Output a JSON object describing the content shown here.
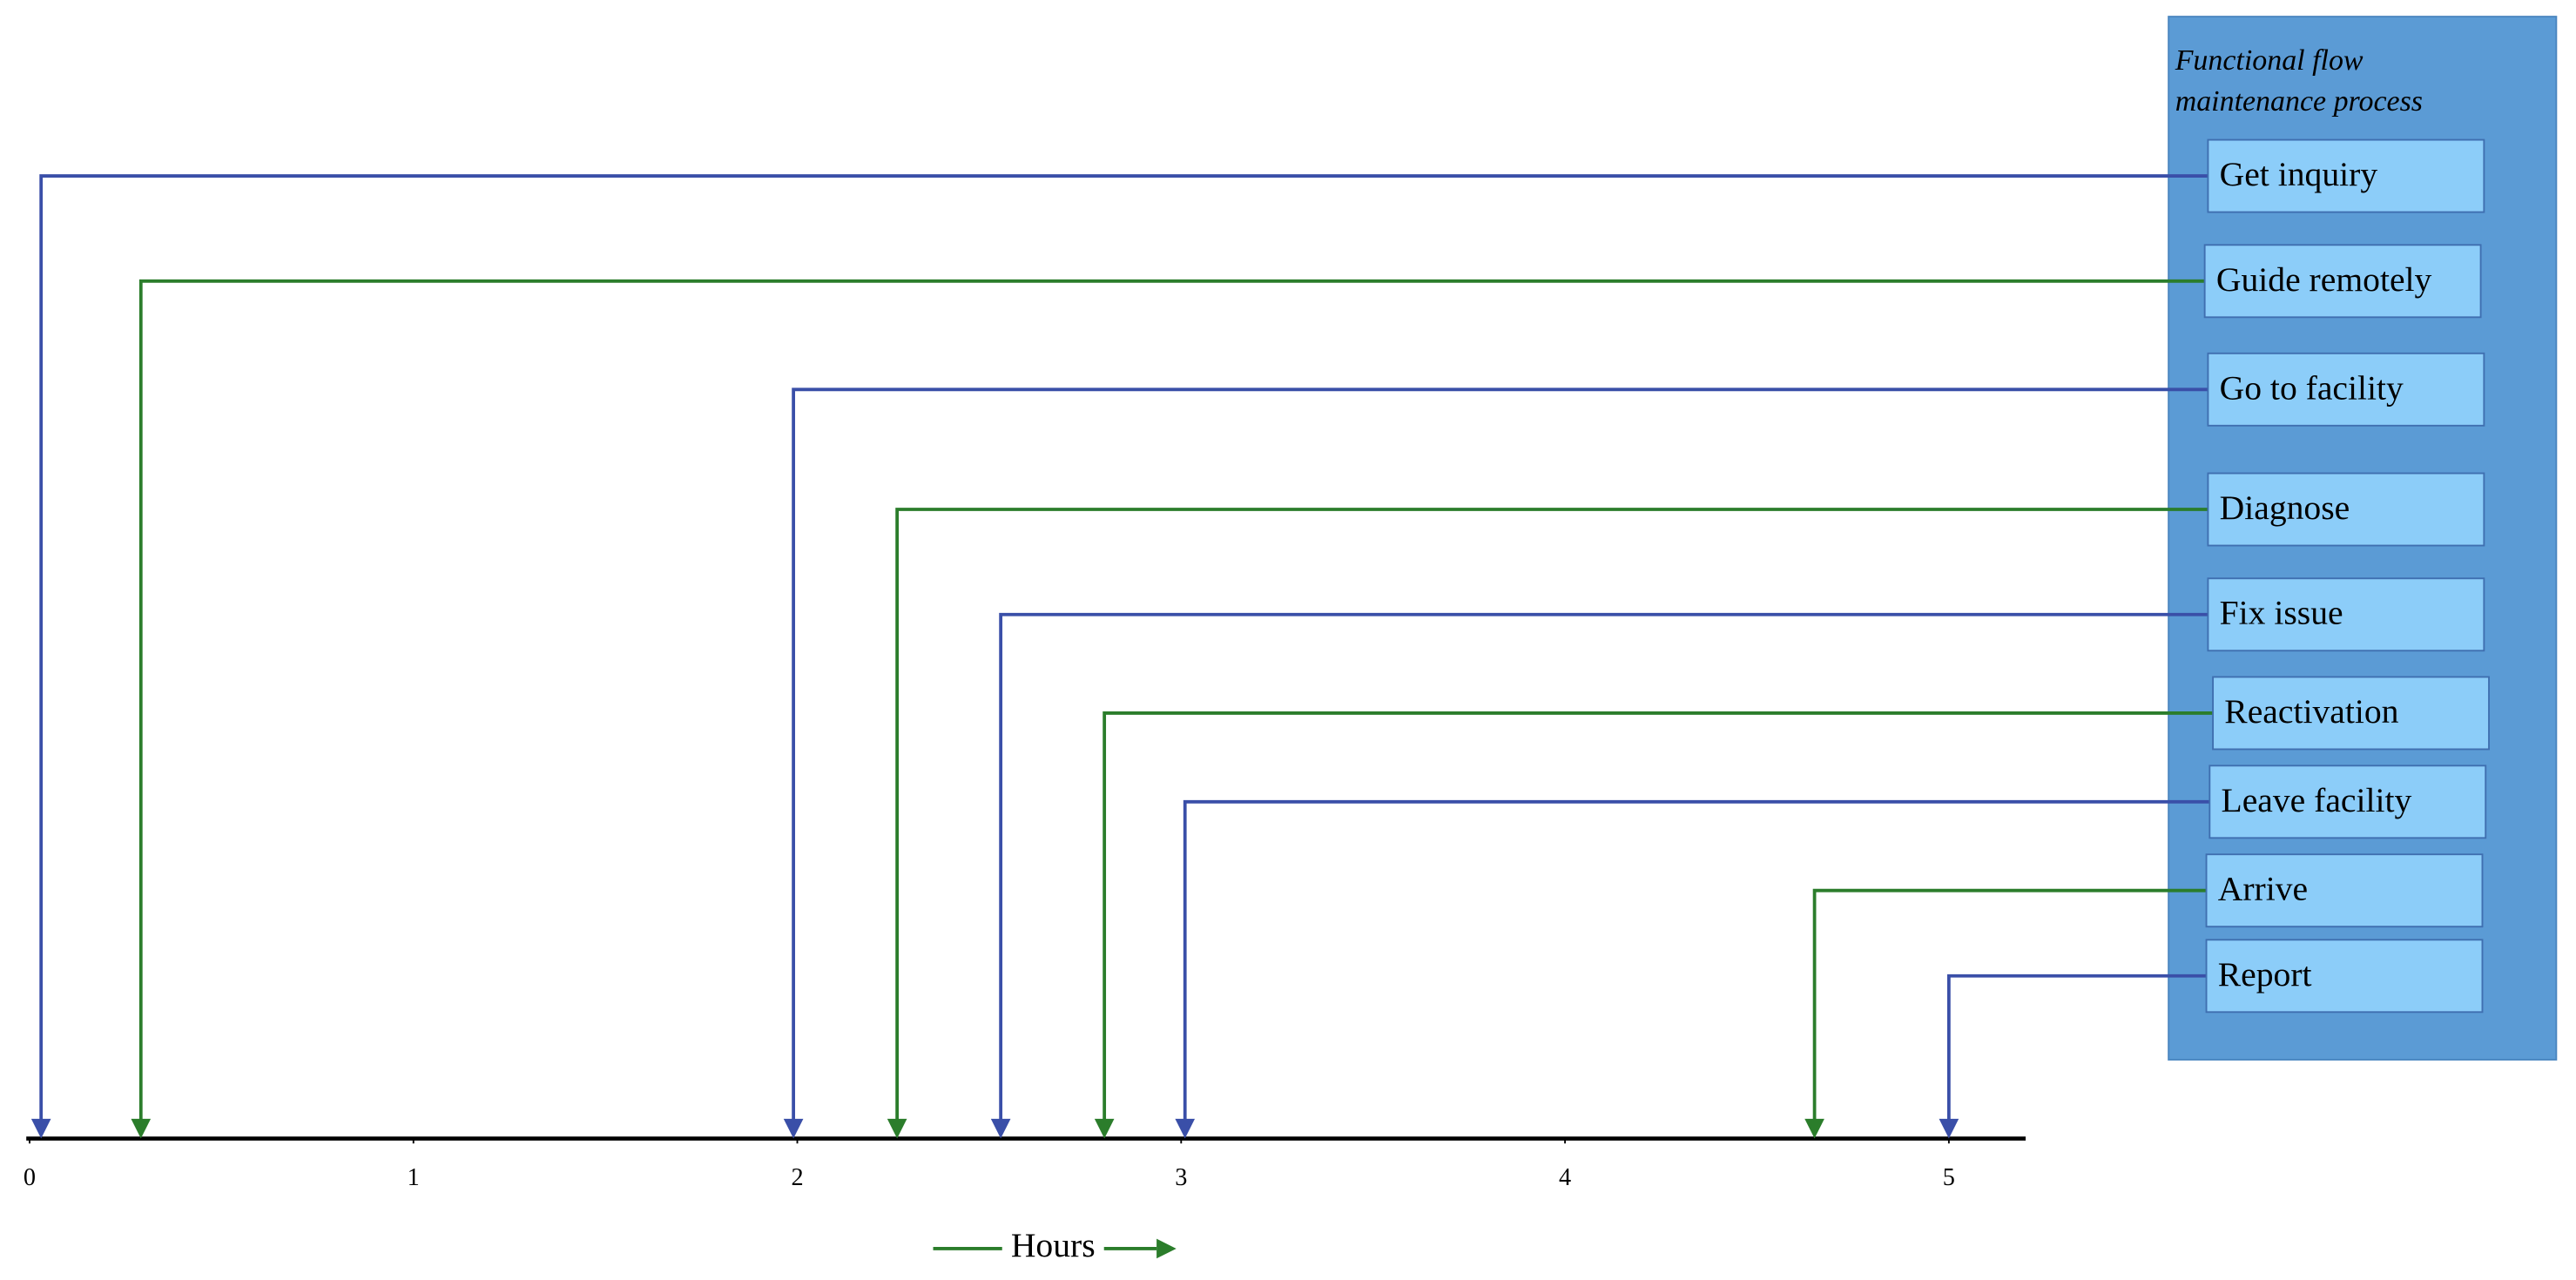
{
  "chart_data": {
    "type": "timeline",
    "title": "Functional flow maintenance process",
    "x_label": "Hours",
    "xlim": [
      0,
      5.2
    ],
    "xticks": [
      0,
      1,
      2,
      3,
      4,
      5
    ],
    "events": [
      {
        "name": "Get inquiry",
        "x": 0.03,
        "color": "#3a4fa8"
      },
      {
        "name": "Guide remotely",
        "x": 0.29,
        "color": "#2b7d2b"
      },
      {
        "name": "Go to facility",
        "x": 1.99,
        "color": "#3a4fa8"
      },
      {
        "name": "Diagnose",
        "x": 2.26,
        "color": "#2b7d2b"
      },
      {
        "name": "Fix issue",
        "x": 2.53,
        "color": "#3a4fa8"
      },
      {
        "name": "Reactivation",
        "x": 2.8,
        "color": "#2b7d2b"
      },
      {
        "name": "Leave facility",
        "x": 3.01,
        "color": "#3a4fa8"
      },
      {
        "name": "Arrive",
        "x": 4.65,
        "color": "#2b7d2b"
      },
      {
        "name": "Report",
        "x": 5.0,
        "color": "#3a4fa8"
      }
    ]
  }
}
